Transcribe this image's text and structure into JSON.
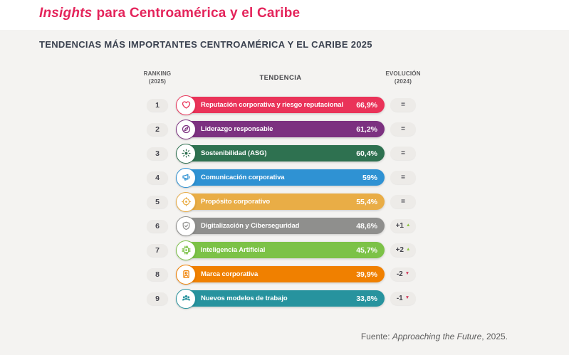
{
  "header": {
    "title_italic": "Insights",
    "title_rest": "para Centroamérica y el Caribe",
    "heading": "TENDENCIAS MÁS IMPORTANTES CENTROAMÉRICA Y EL CARIBE 2025"
  },
  "columns": {
    "ranking": "RANKING",
    "ranking_year": "(2025)",
    "trend": "TENDENCIA",
    "evolution": "EVOLUCIÓN",
    "evolution_year": "(2024)"
  },
  "rows": [
    {
      "rank": "1",
      "label": "Reputación corporativa y riesgo reputacional",
      "value": "66,9%",
      "color": "#ea3359",
      "icon": "heart-icon",
      "evolution": "=",
      "direction": "same"
    },
    {
      "rank": "2",
      "label": "Liderazgo responsable",
      "value": "61,2%",
      "color": "#7c3180",
      "icon": "compass-icon",
      "evolution": "=",
      "direction": "same"
    },
    {
      "rank": "3",
      "label": "Sostenibilidad (ASG)",
      "value": "60,4%",
      "color": "#2e7150",
      "icon": "sun-icon",
      "evolution": "=",
      "direction": "same"
    },
    {
      "rank": "4",
      "label": "Comunicación corporativa",
      "value": "59%",
      "color": "#2f92d3",
      "icon": "megaphone-icon",
      "evolution": "=",
      "direction": "same"
    },
    {
      "rank": "5",
      "label": "Propósito corporativo",
      "value": "55,4%",
      "color": "#e9ad46",
      "icon": "target-icon",
      "evolution": "=",
      "direction": "same"
    },
    {
      "rank": "6",
      "label": "Digitalización y Ciberseguridad",
      "value": "48,6%",
      "color": "#8f8f8d",
      "icon": "shield-check-icon",
      "evolution": "+1",
      "direction": "up"
    },
    {
      "rank": "7",
      "label": "Inteligencia Artificial",
      "value": "45,7%",
      "color": "#7cc247",
      "icon": "chip-icon",
      "evolution": "+2",
      "direction": "up"
    },
    {
      "rank": "8",
      "label": "Marca corporativa",
      "value": "39,9%",
      "color": "#f08000",
      "icon": "id-badge-icon",
      "evolution": "-2",
      "direction": "down"
    },
    {
      "rank": "9",
      "label": "Nuevos modelos de trabajo",
      "value": "33,8%",
      "color": "#27939e",
      "icon": "people-icon",
      "evolution": "-1",
      "direction": "down"
    }
  ],
  "footer": {
    "prefix": "Fuente: ",
    "source": "Approaching the Future",
    "suffix": ", 2025."
  },
  "theme": {
    "title_color": "#e4245b",
    "heading_color": "#3b4250",
    "page_bg": "#ffffff",
    "panel_bg": "#f4f3f1",
    "pill_bg": "#eceae7",
    "pill_text": "#44444c",
    "bar_text_color": "#ffffff",
    "up_color": "#8bc53f",
    "down_color": "#cf3355"
  },
  "chart_data": {
    "type": "bar",
    "title": "TENDENCIAS MÁS IMPORTANTES CENTROAMÉRICA Y EL CARIBE 2025",
    "categories": [
      "Reputación corporativa y riesgo reputacional",
      "Liderazgo responsable",
      "Sostenibilidad (ASG)",
      "Comunicación corporativa",
      "Propósito corporativo",
      "Digitalización y Ciberseguridad",
      "Inteligencia Artificial",
      "Marca corporativa",
      "Nuevos modelos de trabajo"
    ],
    "values": [
      66.9,
      61.2,
      60.4,
      59,
      55.4,
      48.6,
      45.7,
      39.9,
      33.8
    ],
    "value_labels": [
      "66,9%",
      "61,2%",
      "60,4%",
      "59%",
      "55,4%",
      "48,6%",
      "45,7%",
      "39,9%",
      "33,8%"
    ],
    "ranking_2025": [
      1,
      2,
      3,
      4,
      5,
      6,
      7,
      8,
      9
    ],
    "evolution_2024": [
      "=",
      "=",
      "=",
      "=",
      "=",
      "+1",
      "+2",
      "-2",
      "-1"
    ],
    "bar_colors": [
      "#ea3359",
      "#7c3180",
      "#2e7150",
      "#2f92d3",
      "#e9ad46",
      "#8f8f8d",
      "#7cc247",
      "#f08000",
      "#27939e"
    ],
    "xlabel": "TENDENCIA",
    "ylabel": "",
    "layout": {
      "orientation": "horizontal",
      "equal_length_pills": true,
      "grid": false,
      "legend": false
    },
    "source": "Fuente: Approaching the Future, 2025."
  }
}
